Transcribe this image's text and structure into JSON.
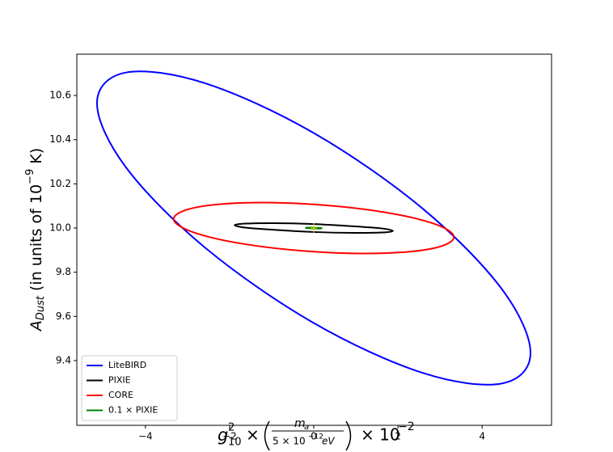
{
  "chart_data": {
    "type": "line",
    "xlabel": {
      "g": "g",
      "g_sup": "2",
      "g_sub": "10",
      "times1": "×",
      "num": "m",
      "num_sub": "a",
      "den": "5 × 10",
      "den_sup": "−12",
      "den_end": "eV",
      "times2": "× 10",
      "exp": "−2"
    },
    "ylabel": {
      "main": "A",
      "sub": "Dust",
      "text": " (in units of 10",
      "sup": "−9",
      "end": " K)"
    },
    "xlim": [
      -5.63,
      5.65
    ],
    "ylim": [
      9.107,
      10.787
    ],
    "xticks": [
      {
        "value": -4,
        "label": "−4"
      },
      {
        "value": -2,
        "label": "−2"
      },
      0,
      2,
      4
    ],
    "yticks": [
      9.4,
      9.6,
      9.8,
      {
        "value": 10,
        "label": "10.0"
      },
      10.2,
      10.4,
      10.6
    ],
    "legend": "lower left",
    "series": [
      {
        "name": "LiteBIRD",
        "color": "#0000ff",
        "x": [
          5.15,
          4.46,
          2.575,
          0,
          -2.575,
          -4.46,
          -5.15,
          -4.46,
          -2.575,
          0,
          2.575,
          4.46
        ],
        "y": [
          9.435,
          9.726,
          10.09,
          10.43,
          10.655,
          10.704,
          10.565,
          10.274,
          9.91,
          9.57,
          9.345,
          9.296
        ]
      },
      {
        "name": "PIXIE",
        "color": "#000000",
        "x": [
          1.88,
          1.628,
          0.94,
          0,
          -0.94,
          -1.628,
          -1.88,
          -1.628,
          -0.94,
          0,
          0.94,
          1.628
        ],
        "y": [
          9.987,
          9.998,
          10.008,
          10.018,
          10.022,
          10.02,
          10.013,
          10.002,
          9.992,
          9.982,
          9.978,
          9.98
        ]
      },
      {
        "name": "CORE",
        "color": "#ff0000",
        "x": [
          3.33,
          2.88,
          1.665,
          0,
          -1.665,
          -2.88,
          -3.33,
          -2.88,
          -1.665,
          0,
          1.665,
          2.88
        ],
        "y": [
          9.959,
          10.018,
          10.072,
          10.107,
          10.114,
          10.09,
          10.041,
          9.982,
          9.928,
          9.893,
          9.886,
          9.91
        ]
      },
      {
        "name": "0.1 × PIXIE",
        "color": "#008000",
        "x": [
          0.19,
          0.165,
          0.095,
          0,
          -0.095,
          -0.165,
          -0.19,
          -0.165,
          -0.095,
          0,
          0.095,
          0.165
        ],
        "y": [
          9.999,
          10,
          10.001,
          10.002,
          10.002,
          10.002,
          10.001,
          10,
          9.999,
          9.998,
          9.998,
          9.998
        ]
      }
    ],
    "marker": {
      "x": 0,
      "y": 10,
      "color": "#e6e600"
    }
  }
}
